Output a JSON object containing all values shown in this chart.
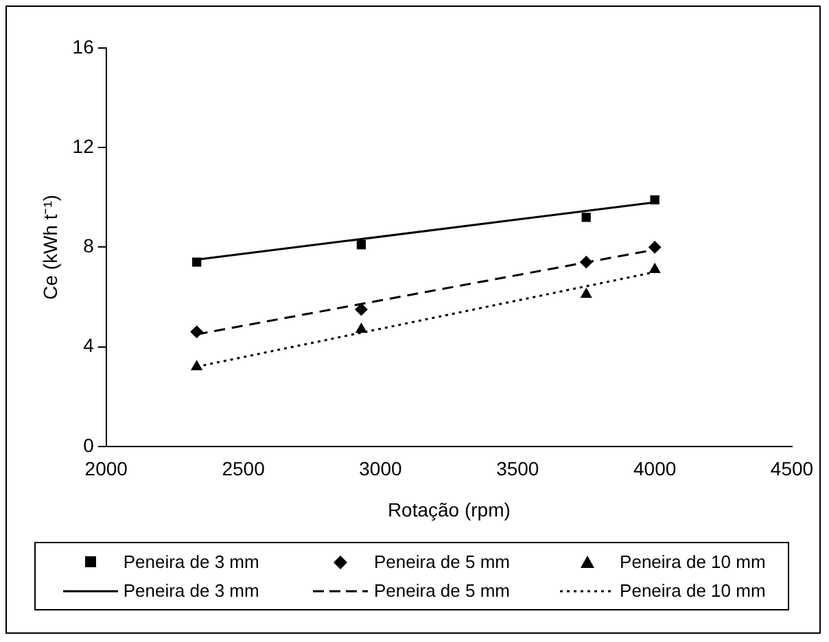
{
  "chart_data": {
    "type": "scatter",
    "xlabel": "Rotação (rpm)",
    "ylabel": "Ce (kWh t⁻¹)",
    "xlim": [
      2000,
      4500
    ],
    "xticks": [
      2000,
      2500,
      3000,
      3500,
      4000,
      4500
    ],
    "ylim": [
      0,
      16
    ],
    "yticks": [
      0,
      4,
      8,
      12,
      16
    ],
    "grid": false,
    "legend": "bottom",
    "series": [
      {
        "name": "Peneira de 3 mm",
        "type": "scatter",
        "marker": "square",
        "color": "#000000",
        "x": [
          2330,
          2930,
          3750,
          4000
        ],
        "values": [
          7.4,
          8.1,
          9.2,
          9.9
        ]
      },
      {
        "name": "Peneira de 5 mm",
        "type": "scatter",
        "marker": "diamond",
        "color": "#000000",
        "x": [
          2330,
          2930,
          3750,
          4000
        ],
        "values": [
          4.6,
          5.5,
          7.4,
          8.0
        ]
      },
      {
        "name": "Peneira de 10 mm",
        "type": "scatter",
        "marker": "triangle",
        "color": "#000000",
        "x": [
          2330,
          2930,
          3750,
          4000
        ],
        "values": [
          3.2,
          4.7,
          6.1,
          7.1
        ]
      },
      {
        "name": "Peneira de 3 mm",
        "type": "line",
        "line_style": "solid",
        "color": "#000000",
        "x": [
          2330,
          4000
        ],
        "values": [
          7.5,
          9.8
        ]
      },
      {
        "name": "Peneira de 5 mm",
        "type": "line",
        "line_style": "dashed",
        "color": "#000000",
        "x": [
          2330,
          4000
        ],
        "values": [
          4.5,
          7.9
        ]
      },
      {
        "name": "Peneira de 10 mm",
        "type": "line",
        "line_style": "dotted",
        "color": "#000000",
        "x": [
          2330,
          4000
        ],
        "values": [
          3.2,
          7.0
        ]
      }
    ]
  }
}
